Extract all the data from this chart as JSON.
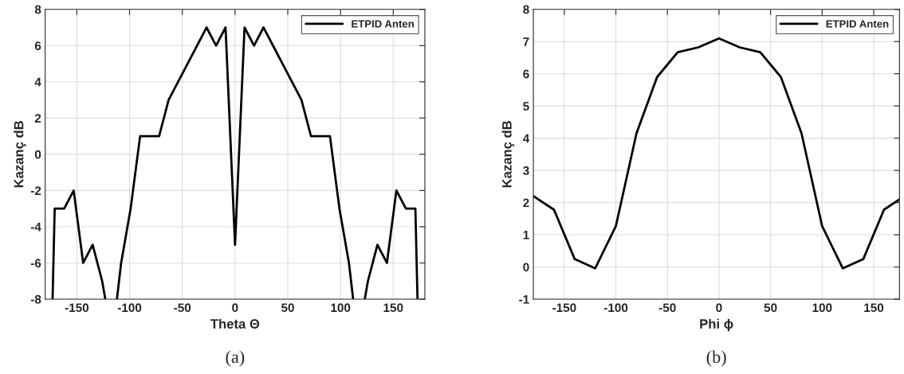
{
  "chart_data": [
    {
      "type": "line",
      "xlabel": "Theta Θ",
      "ylabel": "Kazanç dB",
      "xlim": [
        -180,
        180
      ],
      "ylim": [
        -8,
        8
      ],
      "xticks": [
        -150,
        -100,
        -50,
        0,
        50,
        100,
        150
      ],
      "yticks": [
        -8,
        -6,
        -4,
        -2,
        0,
        2,
        4,
        6,
        8
      ],
      "grid": true,
      "legend": "top right",
      "annotations": [
        "(a)"
      ],
      "series": [
        {
          "name": "ETPID Anten",
          "color": "#000000",
          "x": [
            -173,
            -171,
            -162,
            -153,
            -144,
            -135,
            -126,
            -123,
            -120,
            -112,
            -108,
            -99,
            -90,
            -72,
            -63,
            -27,
            -18,
            -9,
            0,
            9,
            18,
            27,
            63,
            72,
            90,
            99,
            108,
            112,
            120,
            123,
            126,
            135,
            144,
            153,
            162,
            171,
            173
          ],
          "values": [
            -8,
            -3,
            -3,
            -2,
            -6,
            -5,
            -7,
            -8,
            null,
            -8,
            -6,
            -3,
            1,
            1,
            3,
            7,
            6,
            7,
            -5,
            7,
            6,
            7,
            3,
            1,
            1,
            -3,
            -6,
            -8,
            null,
            -8,
            -7,
            -5,
            -6,
            -2,
            -3,
            -3,
            -8
          ]
        }
      ]
    },
    {
      "type": "line",
      "xlabel": "Phi ϕ",
      "ylabel": "Kazanç dB",
      "xlim": [
        -180,
        175
      ],
      "ylim": [
        -1,
        8
      ],
      "xticks": [
        -150,
        -100,
        -50,
        0,
        50,
        100,
        150
      ],
      "yticks": [
        -1,
        0,
        1,
        2,
        3,
        4,
        5,
        6,
        7,
        8
      ],
      "grid": true,
      "legend": "top right",
      "annotations": [
        "(b)"
      ],
      "series": [
        {
          "name": "ETPID Anten",
          "color": "#000000",
          "x": [
            -180,
            -160,
            -140,
            -120,
            -100,
            -80,
            -60,
            -40,
            -20,
            0,
            20,
            40,
            60,
            80,
            100,
            120,
            140,
            160,
            175
          ],
          "values": [
            2.2,
            1.78,
            0.25,
            -0.04,
            1.27,
            4.15,
            5.9,
            6.67,
            6.82,
            7.1,
            6.82,
            6.67,
            5.9,
            4.15,
            1.27,
            -0.04,
            0.25,
            1.78,
            2.1
          ]
        }
      ]
    }
  ]
}
